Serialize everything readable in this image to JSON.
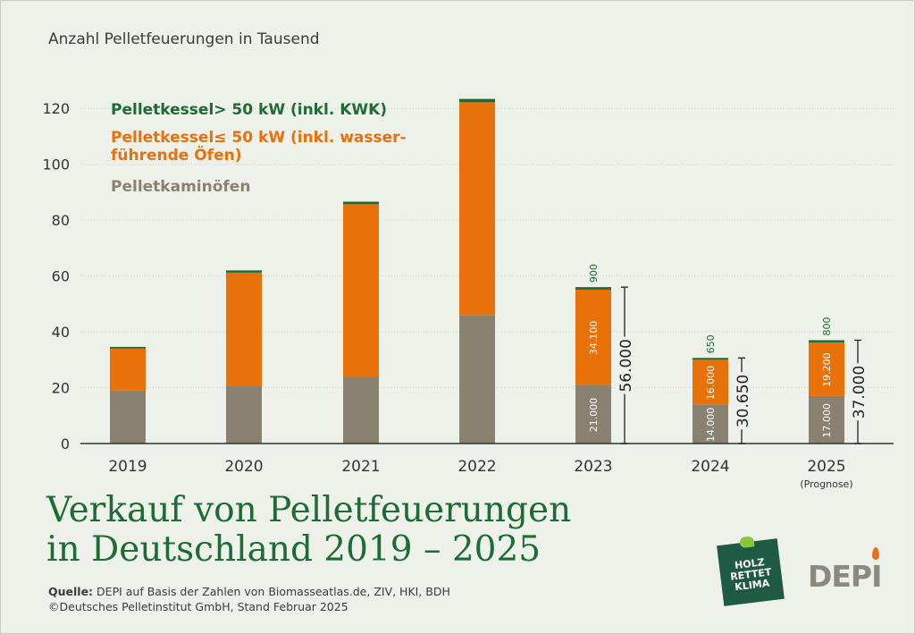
{
  "header": {
    "unit_label": "Anzahl Pelletfeuerungen in Tausend"
  },
  "headline": {
    "line1": "Verkauf von Pelletfeuerungen",
    "line2": "in Deutschland 2019 – 2025"
  },
  "source": {
    "label": "Quelle:",
    "text": "DEPI auf Basis der Zahlen von Biomasseatlas.de, ZIV, HKI, BDH",
    "copyright": "©Deutsches Pelletinstitut GmbH, Stand Februar 2025"
  },
  "logos": {
    "holz_line1": "HOLZ",
    "holz_line2": "RETTET",
    "holz_line3": "KLIMA",
    "depi": "DEPI"
  },
  "colors": {
    "kwk": "#1d6b35",
    "boiler": "#e8710a",
    "stove": "#8a8270",
    "title": "#1d6b35"
  },
  "chart_data": {
    "type": "bar",
    "stacked": true,
    "categories": [
      "2019",
      "2020",
      "2021",
      "2022",
      "2023",
      "2024",
      "2025"
    ],
    "category_notes": [
      "",
      "",
      "",
      "",
      "",
      "",
      "(Prognose)"
    ],
    "ylim": [
      0,
      130
    ],
    "yticks": [
      0,
      20,
      40,
      60,
      80,
      100,
      120
    ],
    "legend_position": "top-left",
    "series": [
      {
        "name": "Pelletkaminöfen",
        "color": "#8a8270",
        "values": [
          19,
          20.5,
          24,
          46,
          21.0,
          14.0,
          17.0
        ],
        "labels": [
          "",
          "",
          "",
          "",
          "21.000",
          "14.000",
          "17.000"
        ]
      },
      {
        "name": "Pelletkessel≤ 50 kW (inkl. wasser-führende Öfen)",
        "color": "#e8710a",
        "values": [
          15,
          40.7,
          61.7,
          76.2,
          34.1,
          16.0,
          19.2
        ],
        "labels": [
          "",
          "",
          "",
          "",
          "34.100",
          "16.000",
          "19.200"
        ]
      },
      {
        "name": "Pelletkessel> 50 kW (inkl. KWK)",
        "color": "#1d6b35",
        "values": [
          0.6,
          0.8,
          0.9,
          1.2,
          0.9,
          0.65,
          0.8
        ],
        "labels": [
          "",
          "",
          "",
          "",
          "900",
          "650",
          "800"
        ]
      }
    ],
    "legend": [
      {
        "line1": "Pelletkessel> 50 kW (inkl. KWK)",
        "line2": "",
        "color": "#1d6b35"
      },
      {
        "line1": "Pelletkessel≤ 50 kW (inkl. wasser-",
        "line2": "führende Öfen)",
        "color": "#e8710a"
      },
      {
        "line1": "Pelletkaminöfen",
        "line2": "",
        "color": "#8a8270"
      }
    ],
    "totals": [
      {
        "index": 4,
        "value": 56.0,
        "label": "56.000"
      },
      {
        "index": 5,
        "value": 30.65,
        "label": "30.650"
      },
      {
        "index": 6,
        "value": 37.0,
        "label": "37.000"
      }
    ]
  }
}
